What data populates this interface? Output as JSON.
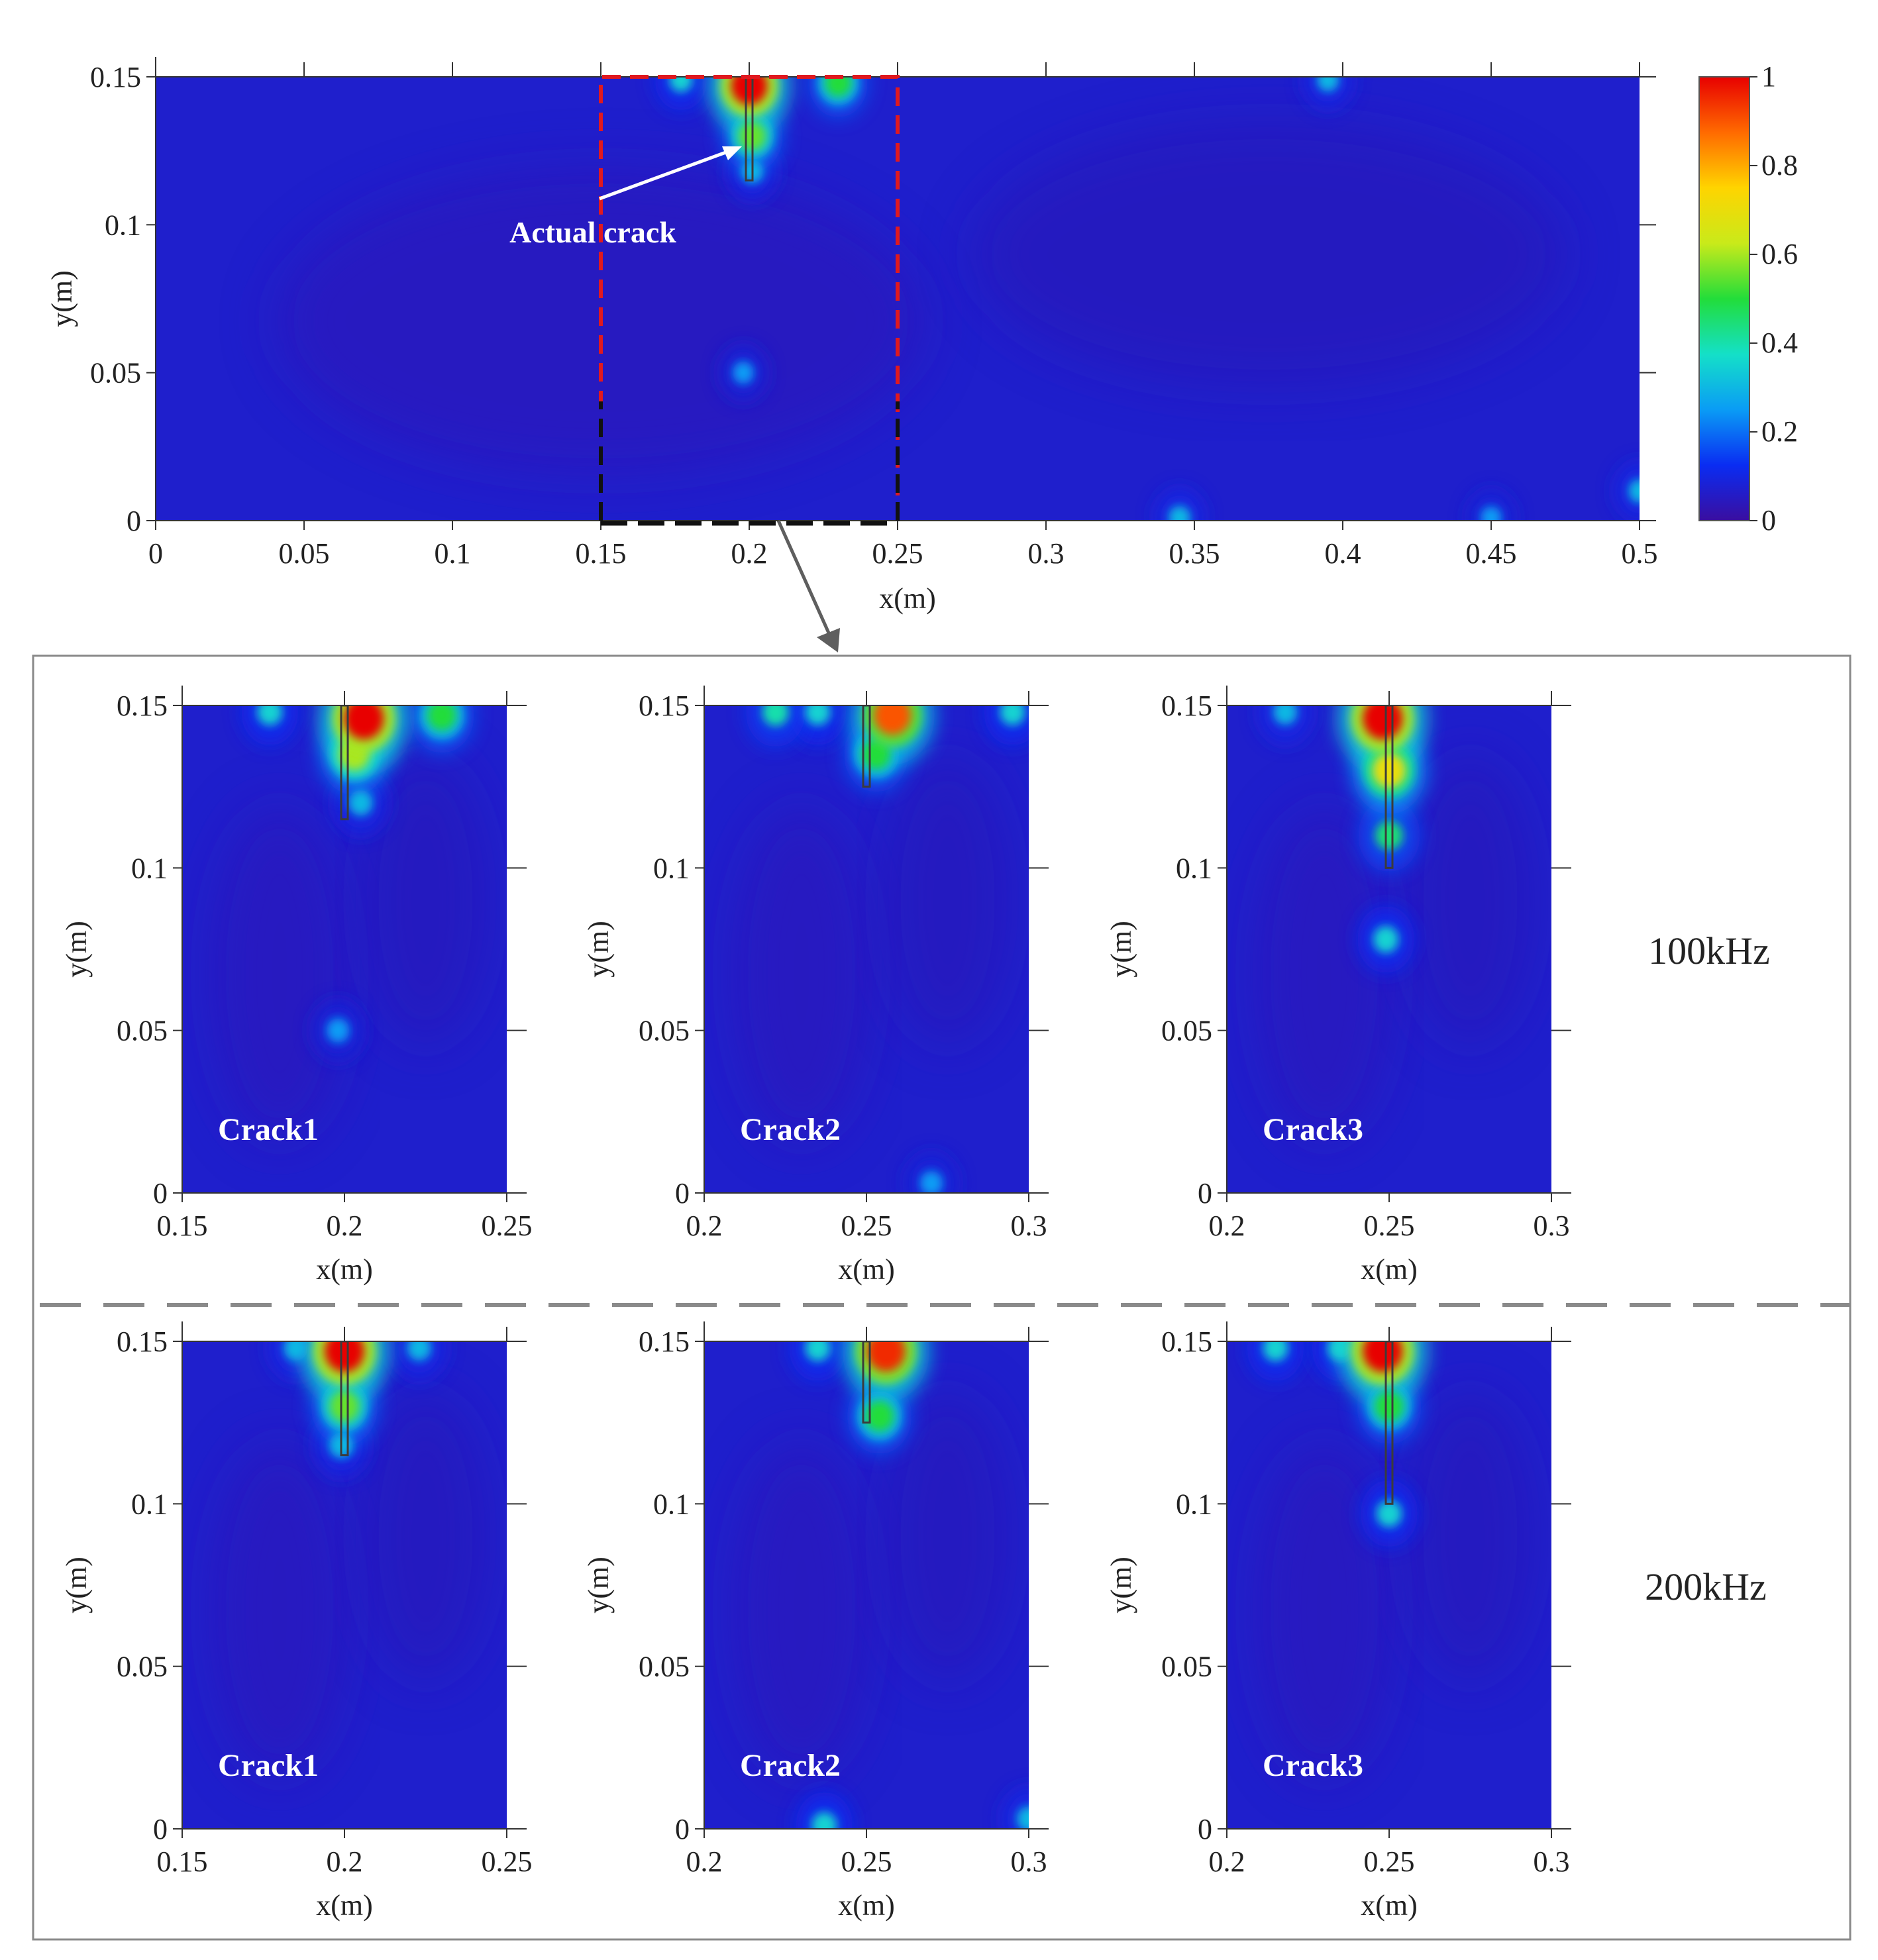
{
  "colorbar": {
    "ticks": [
      "0",
      "0.2",
      "0.4",
      "0.6",
      "0.8",
      "1"
    ],
    "range": [
      0,
      1
    ],
    "colormap": [
      "#3a0ea0",
      "#0a2cf2",
      "#0a9cf5",
      "#14e0c8",
      "#22dd3a",
      "#c9ea1a",
      "#ffd400",
      "#ff6a00",
      "#e80000"
    ]
  },
  "overview": {
    "annotation": "Actual crack",
    "xlabel": "x(m)",
    "ylabel": "y(m)",
    "xticks": [
      "0",
      "0.05",
      "0.1",
      "0.15",
      "0.2",
      "0.25",
      "0.3",
      "0.35",
      "0.4",
      "0.45",
      "0.5"
    ],
    "yticks": [
      "0",
      "0.05",
      "0.1",
      "0.15"
    ]
  },
  "rows": [
    {
      "label": "100kHz"
    },
    {
      "label": "200kHz"
    }
  ],
  "chart_data": [
    {
      "type": "heatmap",
      "title": "",
      "xlabel": "x(m)",
      "ylabel": "y(m)",
      "xlim": [
        0,
        0.5
      ],
      "ylim": [
        0,
        0.15
      ],
      "zlim": [
        0,
        1
      ],
      "zoom_box": {
        "x": [
          0.15,
          0.25
        ],
        "y": [
          0,
          0.15
        ]
      },
      "crack": {
        "x": 0.2,
        "y_top": 0.15,
        "y_tip": 0.115
      },
      "hotspots": [
        {
          "x": 0.2,
          "y": 0.147,
          "value": 1.0
        },
        {
          "x": 0.201,
          "y": 0.13,
          "value": 0.55
        },
        {
          "x": 0.201,
          "y": 0.118,
          "value": 0.3
        },
        {
          "x": 0.177,
          "y": 0.149,
          "value": 0.35
        },
        {
          "x": 0.23,
          "y": 0.148,
          "value": 0.5
        },
        {
          "x": 0.198,
          "y": 0.05,
          "value": 0.25
        },
        {
          "x": 0.395,
          "y": 0.149,
          "value": 0.3
        },
        {
          "x": 0.345,
          "y": 0.001,
          "value": 0.3
        },
        {
          "x": 0.45,
          "y": 0.001,
          "value": 0.25
        },
        {
          "x": 0.5,
          "y": 0.01,
          "value": 0.3
        }
      ]
    },
    {
      "type": "heatmap",
      "frequency": "100kHz",
      "label": "Crack1",
      "xlabel": "x(m)",
      "ylabel": "y(m)",
      "xlim": [
        0.15,
        0.25
      ],
      "ylim": [
        0,
        0.15
      ],
      "xticks": [
        "0.15",
        "0.2",
        "0.25"
      ],
      "yticks": [
        "0",
        "0.05",
        "0.1",
        "0.15"
      ],
      "crack": {
        "x": 0.2,
        "y_top": 0.15,
        "y_tip": 0.115
      },
      "hotspots": [
        {
          "x": 0.206,
          "y": 0.146,
          "value": 1.0
        },
        {
          "x": 0.203,
          "y": 0.135,
          "value": 0.6
        },
        {
          "x": 0.205,
          "y": 0.12,
          "value": 0.3
        },
        {
          "x": 0.177,
          "y": 0.148,
          "value": 0.35
        },
        {
          "x": 0.23,
          "y": 0.147,
          "value": 0.5
        },
        {
          "x": 0.198,
          "y": 0.05,
          "value": 0.25
        }
      ]
    },
    {
      "type": "heatmap",
      "frequency": "100kHz",
      "label": "Crack2",
      "xlabel": "x(m)",
      "ylabel": "y(m)",
      "xlim": [
        0.2,
        0.3
      ],
      "ylim": [
        0,
        0.15
      ],
      "xticks": [
        "0.2",
        "0.25",
        "0.3"
      ],
      "yticks": [
        "0",
        "0.05",
        "0.1",
        "0.15"
      ],
      "crack": {
        "x": 0.25,
        "y_top": 0.15,
        "y_tip": 0.125
      },
      "hotspots": [
        {
          "x": 0.258,
          "y": 0.147,
          "value": 0.9
        },
        {
          "x": 0.253,
          "y": 0.135,
          "value": 0.5
        },
        {
          "x": 0.222,
          "y": 0.148,
          "value": 0.4
        },
        {
          "x": 0.235,
          "y": 0.148,
          "value": 0.35
        },
        {
          "x": 0.295,
          "y": 0.148,
          "value": 0.35
        },
        {
          "x": 0.27,
          "y": 0.003,
          "value": 0.25
        }
      ]
    },
    {
      "type": "heatmap",
      "frequency": "100kHz",
      "label": "Crack3",
      "xlabel": "x(m)",
      "ylabel": "y(m)",
      "xlim": [
        0.2,
        0.3
      ],
      "ylim": [
        0,
        0.15
      ],
      "xticks": [
        "0.2",
        "0.25",
        "0.3"
      ],
      "yticks": [
        "0",
        "0.05",
        "0.1",
        "0.15"
      ],
      "crack": {
        "x": 0.25,
        "y_top": 0.15,
        "y_tip": 0.1
      },
      "hotspots": [
        {
          "x": 0.248,
          "y": 0.146,
          "value": 1.0
        },
        {
          "x": 0.25,
          "y": 0.13,
          "value": 0.7
        },
        {
          "x": 0.25,
          "y": 0.11,
          "value": 0.45
        },
        {
          "x": 0.249,
          "y": 0.078,
          "value": 0.35
        },
        {
          "x": 0.218,
          "y": 0.148,
          "value": 0.3
        }
      ]
    },
    {
      "type": "heatmap",
      "frequency": "200kHz",
      "label": "Crack1",
      "xlabel": "x(m)",
      "ylabel": "y(m)",
      "xlim": [
        0.15,
        0.25
      ],
      "ylim": [
        0,
        0.15
      ],
      "xticks": [
        "0.15",
        "0.2",
        "0.25"
      ],
      "yticks": [
        "0",
        "0.05",
        "0.1",
        "0.15"
      ],
      "crack": {
        "x": 0.2,
        "y_top": 0.15,
        "y_tip": 0.115
      },
      "hotspots": [
        {
          "x": 0.2,
          "y": 0.147,
          "value": 1.0
        },
        {
          "x": 0.2,
          "y": 0.13,
          "value": 0.55
        },
        {
          "x": 0.199,
          "y": 0.118,
          "value": 0.3
        },
        {
          "x": 0.185,
          "y": 0.148,
          "value": 0.3
        },
        {
          "x": 0.223,
          "y": 0.148,
          "value": 0.3
        }
      ]
    },
    {
      "type": "heatmap",
      "frequency": "200kHz",
      "label": "Crack2",
      "xlabel": "x(m)",
      "ylabel": "y(m)",
      "xlim": [
        0.2,
        0.3
      ],
      "ylim": [
        0,
        0.15
      ],
      "xticks": [
        "0.2",
        "0.25",
        "0.3"
      ],
      "yticks": [
        "0",
        "0.05",
        "0.1",
        "0.15"
      ],
      "crack": {
        "x": 0.25,
        "y_top": 0.15,
        "y_tip": 0.125
      },
      "hotspots": [
        {
          "x": 0.256,
          "y": 0.147,
          "value": 0.95
        },
        {
          "x": 0.254,
          "y": 0.127,
          "value": 0.5
        },
        {
          "x": 0.235,
          "y": 0.148,
          "value": 0.35
        },
        {
          "x": 0.237,
          "y": 0.001,
          "value": 0.35
        },
        {
          "x": 0.3,
          "y": 0.003,
          "value": 0.3
        }
      ]
    },
    {
      "type": "heatmap",
      "frequency": "200kHz",
      "label": "Crack3",
      "xlabel": "x(m)",
      "ylabel": "y(m)",
      "xlim": [
        0.2,
        0.3
      ],
      "ylim": [
        0,
        0.15
      ],
      "xticks": [
        "0.2",
        "0.25",
        "0.3"
      ],
      "yticks": [
        "0",
        "0.05",
        "0.1",
        "0.15"
      ],
      "crack": {
        "x": 0.25,
        "y_top": 0.15,
        "y_tip": 0.1
      },
      "hotspots": [
        {
          "x": 0.248,
          "y": 0.147,
          "value": 1.0
        },
        {
          "x": 0.25,
          "y": 0.13,
          "value": 0.5
        },
        {
          "x": 0.25,
          "y": 0.097,
          "value": 0.35
        },
        {
          "x": 0.215,
          "y": 0.148,
          "value": 0.35
        },
        {
          "x": 0.235,
          "y": 0.148,
          "value": 0.35
        }
      ]
    }
  ]
}
